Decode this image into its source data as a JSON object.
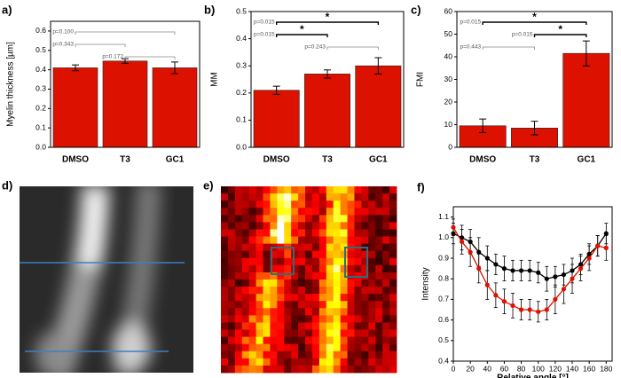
{
  "chart_data": [
    {
      "type": "bar",
      "panel_label": "a)",
      "ylabel": "Myelin thickness [µm]",
      "categories": [
        "DMSO",
        "T3",
        "GC1"
      ],
      "values": [
        0.41,
        0.445,
        0.41
      ],
      "errors": [
        0.015,
        0.012,
        0.03
      ],
      "color": "#dd1100",
      "ylim": [
        0,
        0.65
      ],
      "yticks": [
        {
          "value": 0,
          "label": "0.0"
        },
        0.1,
        0.2,
        0.3,
        0.4,
        0.5,
        0.6
      ],
      "comparisons": [
        {
          "between": [
            "DMSO",
            "GC1"
          ],
          "label": "p=0.100"
        },
        {
          "between": [
            "DMSO",
            "T3"
          ],
          "label": "p=0.343"
        },
        {
          "between": [
            "T3",
            "GC1"
          ],
          "label": "p=0.172"
        }
      ]
    },
    {
      "type": "bar",
      "panel_label": "b)",
      "ylabel": "MM",
      "categories": [
        "DMSO",
        "T3",
        "GC1"
      ],
      "values": [
        0.21,
        0.27,
        0.3
      ],
      "errors": [
        0.015,
        0.015,
        0.03
      ],
      "color": "#dd1100",
      "ylim": [
        0,
        0.5
      ],
      "yticks": [
        {
          "value": 0,
          "label": "0.0"
        },
        0.1,
        0.2,
        0.3,
        0.4,
        0.5
      ],
      "comparisons": [
        {
          "between": [
            "DMSO",
            "GC1"
          ],
          "label": "p=0.015",
          "star": "*"
        },
        {
          "between": [
            "DMSO",
            "T3"
          ],
          "label": "p=0.015",
          "star": "*"
        },
        {
          "between": [
            "T3",
            "GC1"
          ],
          "label": "p=0.243"
        }
      ]
    },
    {
      "type": "bar",
      "panel_label": "c)",
      "ylabel": "FMI",
      "categories": [
        "DMSO",
        "T3",
        "GC1"
      ],
      "values": [
        9.5,
        8.5,
        41.5
      ],
      "errors": [
        3,
        3,
        5.5
      ],
      "color": "#dd1100",
      "ylim": [
        0,
        60
      ],
      "yticks": [
        0,
        10,
        20,
        30,
        40,
        50,
        60
      ],
      "comparisons": [
        {
          "between": [
            "DMSO",
            "GC1"
          ],
          "label": "p=0.015",
          "star": "*"
        },
        {
          "between": [
            "T3",
            "GC1"
          ],
          "label": "p=0.015",
          "star": "*"
        },
        {
          "between": [
            "DMSO",
            "T3"
          ],
          "label": "p=0.443"
        }
      ]
    },
    {
      "type": "line",
      "panel_label": "f)",
      "xlabel": "Relative angle [°]",
      "ylabel": "Intensity",
      "x": [
        0,
        10,
        20,
        30,
        40,
        50,
        60,
        70,
        80,
        90,
        100,
        110,
        120,
        130,
        140,
        150,
        160,
        170,
        180
      ],
      "series": [
        {
          "color": "#000000",
          "values": [
            1.02,
            1.0,
            0.98,
            0.93,
            0.9,
            0.87,
            0.85,
            0.84,
            0.84,
            0.84,
            0.83,
            0.8,
            0.81,
            0.82,
            0.84,
            0.87,
            0.92,
            0.96,
            1.02
          ],
          "errors": [
            0.05,
            0.06,
            0.06,
            0.07,
            0.06,
            0.05,
            0.06,
            0.05,
            0.05,
            0.05,
            0.05,
            0.06,
            0.05,
            0.05,
            0.06,
            0.05,
            0.05,
            0.05,
            0.05
          ]
        },
        {
          "color": "#dd1100",
          "values": [
            1.05,
            0.98,
            0.93,
            0.85,
            0.77,
            0.72,
            0.69,
            0.67,
            0.65,
            0.65,
            0.64,
            0.65,
            0.7,
            0.75,
            0.8,
            0.85,
            0.9,
            0.96,
            0.95
          ],
          "errors": [
            0.04,
            0.06,
            0.07,
            0.07,
            0.07,
            0.06,
            0.06,
            0.06,
            0.05,
            0.05,
            0.05,
            0.05,
            0.07,
            0.07,
            0.07,
            0.06,
            0.06,
            0.05,
            0.06
          ]
        }
      ],
      "xlim": [
        0,
        187
      ],
      "ylim": [
        0.4,
        1.15
      ],
      "xticks": [
        0,
        20,
        40,
        60,
        80,
        100,
        120,
        140,
        160,
        180
      ],
      "yticks": [
        0.4,
        0.5,
        0.6,
        0.7,
        0.8,
        0.9,
        {
          "value": 1,
          "label": "1.0"
        },
        1.1
      ]
    }
  ],
  "image_panels": [
    {
      "label": "d)"
    },
    {
      "label": "e)"
    }
  ]
}
